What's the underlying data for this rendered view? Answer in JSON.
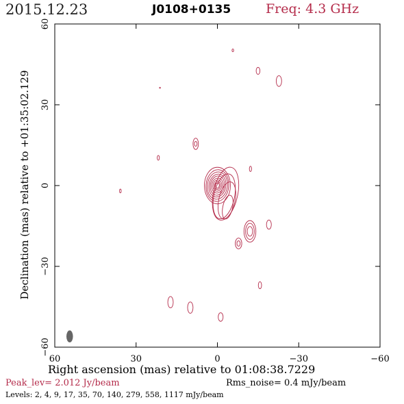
{
  "header": {
    "date": "2015.12.23",
    "source": "J0108+0135",
    "frequency": "Freq: 4.3 GHz"
  },
  "footer": {
    "peak": "Peak_lev=  2.012 Jy/beam",
    "rms": "Rms_noise=  0.4 mJy/beam",
    "levels": "Levels:  2,  4,  9,  17,  35,  70, 140, 279, 558, 1117 mJy/beam"
  },
  "chart_data": {
    "type": "contour",
    "xlabel": "Right ascension (mas) relative to 01:08:38.7229",
    "ylabel": "Declination (mas) relative to +01:35:02.129",
    "xlim": [
      60,
      -60
    ],
    "ylim": [
      -60,
      60
    ],
    "x_ticks": [
      60,
      30,
      0,
      -30,
      -60
    ],
    "y_ticks": [
      -60,
      -30,
      0,
      30,
      60
    ],
    "x_tick_labels": [
      "60",
      "30",
      "0",
      "−30",
      "−60"
    ],
    "y_tick_labels": [
      "−60",
      "−30",
      "0",
      "30",
      "60"
    ],
    "contour_color": "#b42b4a",
    "peak_jy_per_beam": 2.012,
    "rms_mjy_per_beam": 0.4,
    "levels_mjy_per_beam": [
      2,
      4,
      9,
      17,
      35,
      70,
      140,
      279,
      558,
      1117
    ],
    "core": {
      "x": 0,
      "y": 0,
      "nested_ellipses": [
        [
          4.8,
          6.8,
          0
        ],
        [
          4.2,
          5.9,
          -5
        ],
        [
          3.7,
          5.1,
          -8
        ],
        [
          3.1,
          4.3,
          -10
        ],
        [
          2.6,
          3.6,
          -10
        ],
        [
          2.1,
          2.8,
          -10
        ],
        [
          1.6,
          2.1,
          -10
        ],
        [
          1.1,
          1.5,
          -10
        ],
        [
          0.7,
          1.0,
          -10
        ]
      ]
    },
    "jet_ellipses": [
      {
        "x": -3.0,
        "y": -3.0,
        "rx": 4.5,
        "ry": 10.0,
        "angle": -12
      },
      {
        "x": -3.5,
        "y": -5.5,
        "rx": 3.0,
        "ry": 7.0,
        "angle": -12
      },
      {
        "x": -3.8,
        "y": -8.0,
        "rx": 1.8,
        "ry": 4.5,
        "angle": -12
      },
      {
        "x": -2.5,
        "y": -4.0,
        "rx": 3.8,
        "ry": 8.5,
        "angle": -12
      }
    ],
    "islands": [
      {
        "x": -12.0,
        "y": -17.0,
        "rx": 2.2,
        "ry": 4.0,
        "angle": 0
      },
      {
        "x": -12.0,
        "y": -17.0,
        "rx": 1.6,
        "ry": 3.0,
        "angle": 0
      },
      {
        "x": -12.0,
        "y": -17.0,
        "rx": 1.0,
        "ry": 1.8,
        "angle": 0
      },
      {
        "x": -7.8,
        "y": -21.5,
        "rx": 1.2,
        "ry": 2.0,
        "angle": 0
      },
      {
        "x": -7.8,
        "y": -21.5,
        "rx": 0.6,
        "ry": 1.0,
        "angle": 0
      },
      {
        "x": -19.0,
        "y": -14.5,
        "rx": 0.9,
        "ry": 1.7,
        "angle": 0
      },
      {
        "x": 8.0,
        "y": 15.5,
        "rx": 1.0,
        "ry": 2.1,
        "angle": 0
      },
      {
        "x": 8.0,
        "y": 15.5,
        "rx": 0.5,
        "ry": 0.9,
        "angle": 0
      },
      {
        "x": -22.7,
        "y": 38.8,
        "rx": 1.0,
        "ry": 2.0,
        "angle": 0
      },
      {
        "x": -15.0,
        "y": 42.6,
        "rx": 0.7,
        "ry": 1.3,
        "angle": 0
      },
      {
        "x": -5.7,
        "y": 50.2,
        "rx": 0.3,
        "ry": 0.5,
        "angle": 0
      },
      {
        "x": 21.2,
        "y": 36.3,
        "rx": 0.2,
        "ry": 0.2,
        "angle": 0
      },
      {
        "x": 21.8,
        "y": 10.3,
        "rx": 0.4,
        "ry": 0.9,
        "angle": 0
      },
      {
        "x": -12.2,
        "y": 6.2,
        "rx": 0.4,
        "ry": 1.0,
        "angle": 0
      },
      {
        "x": 35.8,
        "y": -2.0,
        "rx": 0.3,
        "ry": 0.7,
        "angle": 0
      },
      {
        "x": 17.3,
        "y": -43.3,
        "rx": 1.0,
        "ry": 2.1,
        "angle": 0
      },
      {
        "x": 10.0,
        "y": -45.3,
        "rx": 1.0,
        "ry": 2.1,
        "angle": 0
      },
      {
        "x": -15.7,
        "y": -37.0,
        "rx": 0.6,
        "ry": 1.3,
        "angle": 0
      },
      {
        "x": -1.2,
        "y": -48.8,
        "rx": 0.9,
        "ry": 1.6,
        "angle": 0
      }
    ],
    "beam": {
      "x": 54.5,
      "y": -56.0,
      "rx": 1.1,
      "ry": 2.1,
      "angle": 0,
      "color": "#666666"
    }
  }
}
